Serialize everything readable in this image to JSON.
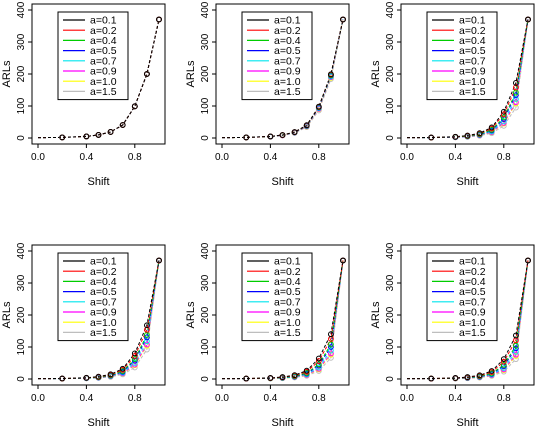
{
  "chart_data": {
    "type": "line",
    "layout": "2x3 grid of panels",
    "xlabel": "Shift",
    "ylabel": "ARLs",
    "xlim": [
      0,
      1
    ],
    "ylim": [
      0,
      400
    ],
    "xticks": [
      "0.0",
      "0.4",
      "0.8"
    ],
    "yticks": [
      "0",
      "100",
      "200",
      "300",
      "400"
    ],
    "legend_position": "top-left",
    "x": [
      0.0,
      0.2,
      0.4,
      0.5,
      0.6,
      0.7,
      0.8,
      0.9,
      1.0
    ],
    "colors": {
      "a=0.1": "#000000",
      "a=0.2": "#ff0000",
      "a=0.4": "#00cd00",
      "a=0.5": "#0000ff",
      "a=0.7": "#00e5ee",
      "a=0.9": "#ff00ff",
      "a=1.0": "#ffff00",
      "a=1.5": "#bebebe"
    },
    "panels": [
      {
        "series": [
          {
            "name": "a=0.1",
            "values": [
              1.0,
              1.9,
              5.0,
              9.6,
              18.9,
              40.6,
              99.0,
              200.0,
              370.4
            ]
          },
          {
            "name": "a=0.2",
            "values": [
              1.0,
              1.9,
              5.0,
              9.6,
              18.9,
              40.6,
              99.0,
              200.0,
              370.4
            ]
          },
          {
            "name": "a=0.4",
            "values": [
              1.0,
              1.9,
              5.0,
              9.6,
              18.9,
              40.6,
              99.0,
              200.0,
              370.4
            ]
          },
          {
            "name": "a=0.5",
            "values": [
              1.0,
              1.9,
              5.0,
              9.6,
              18.9,
              40.6,
              99.0,
              200.0,
              370.4
            ]
          },
          {
            "name": "a=0.7",
            "values": [
              1.0,
              1.9,
              5.0,
              9.6,
              18.9,
              40.6,
              99.0,
              200.0,
              370.4
            ]
          },
          {
            "name": "a=0.9",
            "values": [
              1.0,
              1.9,
              5.0,
              9.6,
              18.9,
              40.6,
              99.0,
              200.0,
              370.4
            ]
          },
          {
            "name": "a=1.0",
            "values": [
              1.0,
              1.9,
              5.0,
              9.6,
              18.9,
              40.6,
              99.0,
              200.0,
              370.4
            ]
          },
          {
            "name": "a=1.5",
            "values": [
              1.0,
              1.9,
              5.0,
              9.6,
              18.9,
              40.6,
              99.0,
              200.0,
              370.4
            ]
          }
        ]
      },
      {
        "series": [
          {
            "name": "a=0.1",
            "values": [
              1.0,
              1.8,
              4.9,
              9.4,
              18.7,
              40.0,
              98.0,
              199.0,
              370.4
            ]
          },
          {
            "name": "a=0.2",
            "values": [
              1.0,
              1.8,
              4.8,
              9.2,
              18.4,
              39.5,
              97.0,
              198.0,
              370.4
            ]
          },
          {
            "name": "a=0.4",
            "values": [
              1.0,
              1.8,
              4.7,
              9.0,
              18.0,
              38.8,
              96.0,
              196.0,
              370.4
            ]
          },
          {
            "name": "a=0.5",
            "values": [
              1.0,
              1.7,
              4.6,
              8.8,
              17.6,
              38.0,
              95.0,
              195.0,
              370.4
            ]
          },
          {
            "name": "a=0.7",
            "values": [
              1.0,
              1.7,
              4.5,
              8.6,
              17.2,
              37.2,
              93.0,
              192.0,
              370.4
            ]
          },
          {
            "name": "a=0.9",
            "values": [
              1.0,
              1.7,
              4.4,
              8.4,
              16.8,
              36.4,
              91.0,
              190.0,
              370.4
            ]
          },
          {
            "name": "a=1.0",
            "values": [
              1.0,
              1.6,
              4.3,
              8.2,
              16.4,
              35.6,
              90.0,
              188.0,
              370.4
            ]
          },
          {
            "name": "a=1.5",
            "values": [
              1.0,
              1.6,
              4.1,
              7.8,
              15.6,
              34.0,
              86.0,
              184.0,
              370.4
            ]
          }
        ]
      },
      {
        "series": [
          {
            "name": "a=0.1",
            "values": [
              1.0,
              1.6,
              4.0,
              7.6,
              15.0,
              33.0,
              82.0,
              172.0,
              370.4
            ]
          },
          {
            "name": "a=0.2",
            "values": [
              1.0,
              1.5,
              3.6,
              6.8,
              13.5,
              29.5,
              74.0,
              158.0,
              370.4
            ]
          },
          {
            "name": "a=0.4",
            "values": [
              1.0,
              1.4,
              3.2,
              5.8,
              11.6,
              25.5,
              64.0,
              142.0,
              370.4
            ]
          },
          {
            "name": "a=0.5",
            "values": [
              1.0,
              1.3,
              3.0,
              5.4,
              10.6,
              23.5,
              59.0,
              134.0,
              370.4
            ]
          },
          {
            "name": "a=0.7",
            "values": [
              1.0,
              1.3,
              2.7,
              4.8,
              9.4,
              20.5,
              52.0,
              122.0,
              370.4
            ]
          },
          {
            "name": "a=0.9",
            "values": [
              1.0,
              1.2,
              2.5,
              4.4,
              8.5,
              18.5,
              47.0,
              112.0,
              370.4
            ]
          },
          {
            "name": "a=1.0",
            "values": [
              1.0,
              1.2,
              2.4,
              4.2,
              8.1,
              17.6,
              45.0,
              108.0,
              370.4
            ]
          },
          {
            "name": "a=1.5",
            "values": [
              1.0,
              1.1,
              2.1,
              3.6,
              6.9,
              15.0,
              38.0,
              95.0,
              370.4
            ]
          }
        ]
      },
      {
        "series": [
          {
            "name": "a=0.1",
            "values": [
              1.0,
              1.6,
              3.9,
              7.4,
              14.6,
              32.0,
              80.0,
              168.0,
              370.4
            ]
          },
          {
            "name": "a=0.2",
            "values": [
              1.0,
              1.5,
              3.5,
              6.6,
              13.0,
              28.5,
              72.0,
              154.0,
              370.4
            ]
          },
          {
            "name": "a=0.4",
            "values": [
              1.0,
              1.4,
              3.1,
              5.6,
              11.2,
              24.6,
              62.0,
              138.0,
              370.4
            ]
          },
          {
            "name": "a=0.5",
            "values": [
              1.0,
              1.3,
              2.9,
              5.2,
              10.2,
              22.6,
              57.0,
              130.0,
              370.4
            ]
          },
          {
            "name": "a=0.7",
            "values": [
              1.0,
              1.3,
              2.6,
              4.6,
              9.0,
              19.8,
              50.0,
              118.0,
              370.4
            ]
          },
          {
            "name": "a=0.9",
            "values": [
              1.0,
              1.2,
              2.4,
              4.2,
              8.2,
              17.8,
              45.0,
              108.0,
              370.4
            ]
          },
          {
            "name": "a=1.0",
            "values": [
              1.0,
              1.2,
              2.3,
              4.0,
              7.8,
              17.0,
              43.0,
              104.0,
              370.4
            ]
          },
          {
            "name": "a=1.5",
            "values": [
              1.0,
              1.1,
              2.0,
              3.5,
              6.6,
              14.4,
              36.0,
              92.0,
              370.4
            ]
          }
        ]
      },
      {
        "series": [
          {
            "name": "a=0.1",
            "values": [
              1.0,
              1.5,
              3.4,
              6.2,
              12.0,
              26.0,
              64.0,
              140.0,
              370.4
            ]
          },
          {
            "name": "a=0.2",
            "values": [
              1.0,
              1.4,
              3.0,
              5.4,
              10.4,
              22.5,
              56.0,
              125.0,
              370.4
            ]
          },
          {
            "name": "a=0.4",
            "values": [
              1.0,
              1.3,
              2.6,
              4.5,
              8.6,
              18.5,
              46.0,
              108.0,
              370.4
            ]
          },
          {
            "name": "a=0.5",
            "values": [
              1.0,
              1.2,
              2.4,
              4.1,
              7.8,
              16.8,
              42.0,
              100.0,
              370.4
            ]
          },
          {
            "name": "a=0.7",
            "values": [
              1.0,
              1.2,
              2.2,
              3.6,
              6.8,
              14.5,
              36.0,
              89.0,
              370.4
            ]
          },
          {
            "name": "a=0.9",
            "values": [
              1.0,
              1.1,
              2.0,
              3.2,
              6.0,
              12.8,
              32.0,
              80.0,
              370.4
            ]
          },
          {
            "name": "a=1.0",
            "values": [
              1.0,
              1.1,
              1.9,
              3.1,
              5.7,
              12.1,
              30.0,
              76.0,
              370.4
            ]
          },
          {
            "name": "a=1.5",
            "values": [
              1.0,
              1.1,
              1.7,
              2.6,
              4.7,
              10.0,
              25.0,
              66.0,
              370.4
            ]
          }
        ]
      },
      {
        "series": [
          {
            "name": "a=0.1",
            "values": [
              1.0,
              1.5,
              3.3,
              6.0,
              11.6,
              25.0,
              62.0,
              136.0,
              370.4
            ]
          },
          {
            "name": "a=0.2",
            "values": [
              1.0,
              1.4,
              2.9,
              5.2,
              10.0,
              21.6,
              54.0,
              121.0,
              370.4
            ]
          },
          {
            "name": "a=0.4",
            "values": [
              1.0,
              1.3,
              2.5,
              4.3,
              8.2,
              17.6,
              44.0,
              104.0,
              370.4
            ]
          },
          {
            "name": "a=0.5",
            "values": [
              1.0,
              1.2,
              2.3,
              3.9,
              7.4,
              16.0,
              40.0,
              96.0,
              370.4
            ]
          },
          {
            "name": "a=0.7",
            "values": [
              1.0,
              1.2,
              2.1,
              3.4,
              6.4,
              13.8,
              34.0,
              85.0,
              370.4
            ]
          },
          {
            "name": "a=0.9",
            "values": [
              1.0,
              1.1,
              1.9,
              3.0,
              5.6,
              12.0,
              30.0,
              76.0,
              370.4
            ]
          },
          {
            "name": "a=1.0",
            "values": [
              1.0,
              1.1,
              1.8,
              2.9,
              5.3,
              11.4,
              28.0,
              72.0,
              370.4
            ]
          },
          {
            "name": "a=1.5",
            "values": [
              1.0,
              1.1,
              1.6,
              2.5,
              4.4,
              9.4,
              23.0,
              62.0,
              370.4
            ]
          }
        ]
      }
    ]
  }
}
